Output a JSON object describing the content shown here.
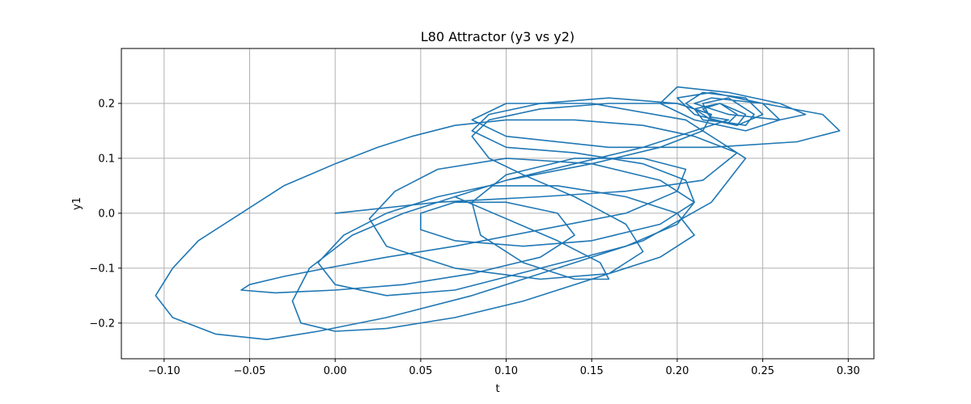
{
  "chart_data": {
    "type": "line",
    "title": "L80 Attractor (y3 vs y2)",
    "xlabel": "t",
    "ylabel": "y1",
    "xlim": [
      -0.125,
      0.315
    ],
    "ylim": [
      -0.265,
      0.3
    ],
    "xticks": [
      -0.1,
      -0.05,
      0.0,
      0.05,
      0.1,
      0.15,
      0.2,
      0.25,
      0.3
    ],
    "xtick_labels": [
      "−0.10",
      "−0.05",
      "0.00",
      "0.05",
      "0.10",
      "0.15",
      "0.20",
      "0.25",
      "0.30"
    ],
    "yticks": [
      -0.2,
      -0.1,
      0.0,
      0.1,
      0.2
    ],
    "ytick_labels": [
      "−0.2",
      "−0.1",
      "0.0",
      "0.1",
      "0.2"
    ],
    "grid": true,
    "color": "#1f77b4",
    "series": [
      {
        "x": [
          0.0,
          0.06,
          0.12,
          0.17,
          0.215,
          0.235,
          0.21,
          0.18,
          0.14,
          0.1,
          0.07,
          0.045,
          0.025,
          0.0,
          -0.03,
          -0.055,
          -0.08,
          -0.095,
          -0.105,
          -0.095,
          -0.07,
          -0.04,
          -0.01,
          0.03,
          0.08,
          0.13,
          0.18,
          0.22,
          0.24,
          0.205,
          0.15,
          0.1,
          0.08,
          0.1,
          0.16,
          0.22,
          0.27,
          0.295,
          0.285,
          0.25,
          0.22,
          0.21,
          0.23,
          0.26,
          0.275,
          0.26,
          0.23,
          0.2,
          0.19,
          0.21,
          0.24,
          0.26,
          0.25,
          0.22,
          0.2,
          0.21,
          0.235,
          0.25,
          0.24,
          0.215,
          0.205,
          0.22,
          0.24,
          0.245,
          0.23,
          0.215,
          0.22,
          0.235,
          0.24,
          0.225,
          0.21,
          0.215,
          0.23,
          0.235,
          0.225,
          0.215,
          0.22,
          0.23
        ],
        "y": [
          0.0,
          0.02,
          0.03,
          0.04,
          0.06,
          0.11,
          0.14,
          0.16,
          0.17,
          0.17,
          0.16,
          0.14,
          0.12,
          0.09,
          0.05,
          0.0,
          -0.05,
          -0.1,
          -0.15,
          -0.19,
          -0.22,
          -0.23,
          -0.215,
          -0.19,
          -0.15,
          -0.1,
          -0.05,
          0.02,
          0.1,
          0.17,
          0.2,
          0.2,
          0.17,
          0.14,
          0.12,
          0.12,
          0.13,
          0.15,
          0.18,
          0.2,
          0.21,
          0.2,
          0.18,
          0.17,
          0.18,
          0.2,
          0.22,
          0.23,
          0.2,
          0.17,
          0.15,
          0.17,
          0.2,
          0.22,
          0.21,
          0.18,
          0.16,
          0.18,
          0.21,
          0.22,
          0.2,
          0.17,
          0.16,
          0.18,
          0.21,
          0.2,
          0.17,
          0.16,
          0.18,
          0.2,
          0.19,
          0.17,
          0.165,
          0.18,
          0.2,
          0.19,
          0.175,
          0.17
        ]
      },
      {
        "x": [
          0.23,
          0.21,
          0.18,
          0.14,
          0.1,
          0.07,
          0.04,
          0.01,
          -0.015,
          -0.025,
          -0.02,
          0.0,
          0.03,
          0.07,
          0.11,
          0.15,
          0.19,
          0.21,
          0.2,
          0.17,
          0.13,
          0.09,
          0.06,
          0.03,
          0.005,
          -0.01,
          0.0,
          0.03,
          0.07,
          0.12,
          0.17,
          0.2,
          0.21,
          0.19,
          0.15,
          0.1,
          0.06,
          0.035,
          0.02,
          0.03,
          0.07,
          0.12,
          0.16,
          0.18,
          0.17,
          0.14,
          0.11,
          0.09,
          0.08,
          0.09,
          0.12,
          0.16,
          0.2,
          0.22,
          0.215,
          0.19,
          0.15,
          0.1,
          0.07
        ],
        "y": [
          0.17,
          0.15,
          0.12,
          0.09,
          0.06,
          0.03,
          0.0,
          -0.04,
          -0.1,
          -0.16,
          -0.2,
          -0.215,
          -0.21,
          -0.19,
          -0.16,
          -0.12,
          -0.08,
          -0.04,
          0.0,
          0.03,
          0.05,
          0.05,
          0.03,
          0.0,
          -0.04,
          -0.09,
          -0.13,
          -0.15,
          -0.14,
          -0.1,
          -0.06,
          -0.02,
          0.02,
          0.06,
          0.09,
          0.1,
          0.08,
          0.04,
          -0.01,
          -0.06,
          -0.1,
          -0.12,
          -0.11,
          -0.07,
          -0.02,
          0.03,
          0.07,
          0.1,
          0.14,
          0.17,
          0.19,
          0.2,
          0.2,
          0.18,
          0.15,
          0.12,
          0.09,
          0.06,
          0.03
        ]
      },
      {
        "x": [
          0.07,
          0.1,
          0.13,
          0.155,
          0.16,
          0.14,
          0.11,
          0.085,
          0.08,
          0.1,
          0.14,
          0.18,
          0.205,
          0.2,
          0.17,
          0.12,
          0.07,
          0.03,
          -0.005,
          -0.03,
          -0.05,
          -0.055,
          -0.035,
          0.0,
          0.04,
          0.08,
          0.12,
          0.14,
          0.13,
          0.1,
          0.07,
          0.05,
          0.05,
          0.07,
          0.11,
          0.15,
          0.19,
          0.21,
          0.205,
          0.18,
          0.14,
          0.1,
          0.08,
          0.09,
          0.12,
          0.16,
          0.2,
          0.22
        ],
        "y": [
          0.03,
          -0.01,
          -0.05,
          -0.09,
          -0.12,
          -0.12,
          -0.09,
          -0.04,
          0.02,
          0.07,
          0.1,
          0.1,
          0.08,
          0.04,
          0.0,
          -0.03,
          -0.06,
          -0.08,
          -0.1,
          -0.115,
          -0.13,
          -0.14,
          -0.145,
          -0.14,
          -0.13,
          -0.11,
          -0.08,
          -0.04,
          0.0,
          0.02,
          0.02,
          0.0,
          -0.03,
          -0.05,
          -0.06,
          -0.05,
          -0.02,
          0.02,
          0.06,
          0.09,
          0.11,
          0.12,
          0.15,
          0.18,
          0.2,
          0.21,
          0.2,
          0.18
        ]
      }
    ]
  }
}
